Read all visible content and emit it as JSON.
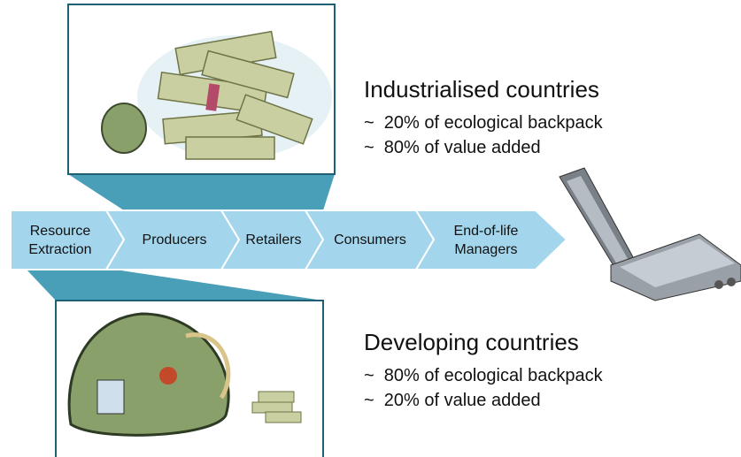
{
  "process": {
    "steps": [
      "Resource\nExtraction",
      "Producers",
      "Retailers",
      "Consumers",
      "End-of-life\nManagers"
    ]
  },
  "industrialised": {
    "heading": "Industrialised countries",
    "points": [
      "~  20% of ecological backpack",
      "~  80% of value added"
    ]
  },
  "developing": {
    "heading": "Developing countries",
    "points": [
      "~  80% of ecological backpack",
      "~  20% of value added"
    ]
  }
}
